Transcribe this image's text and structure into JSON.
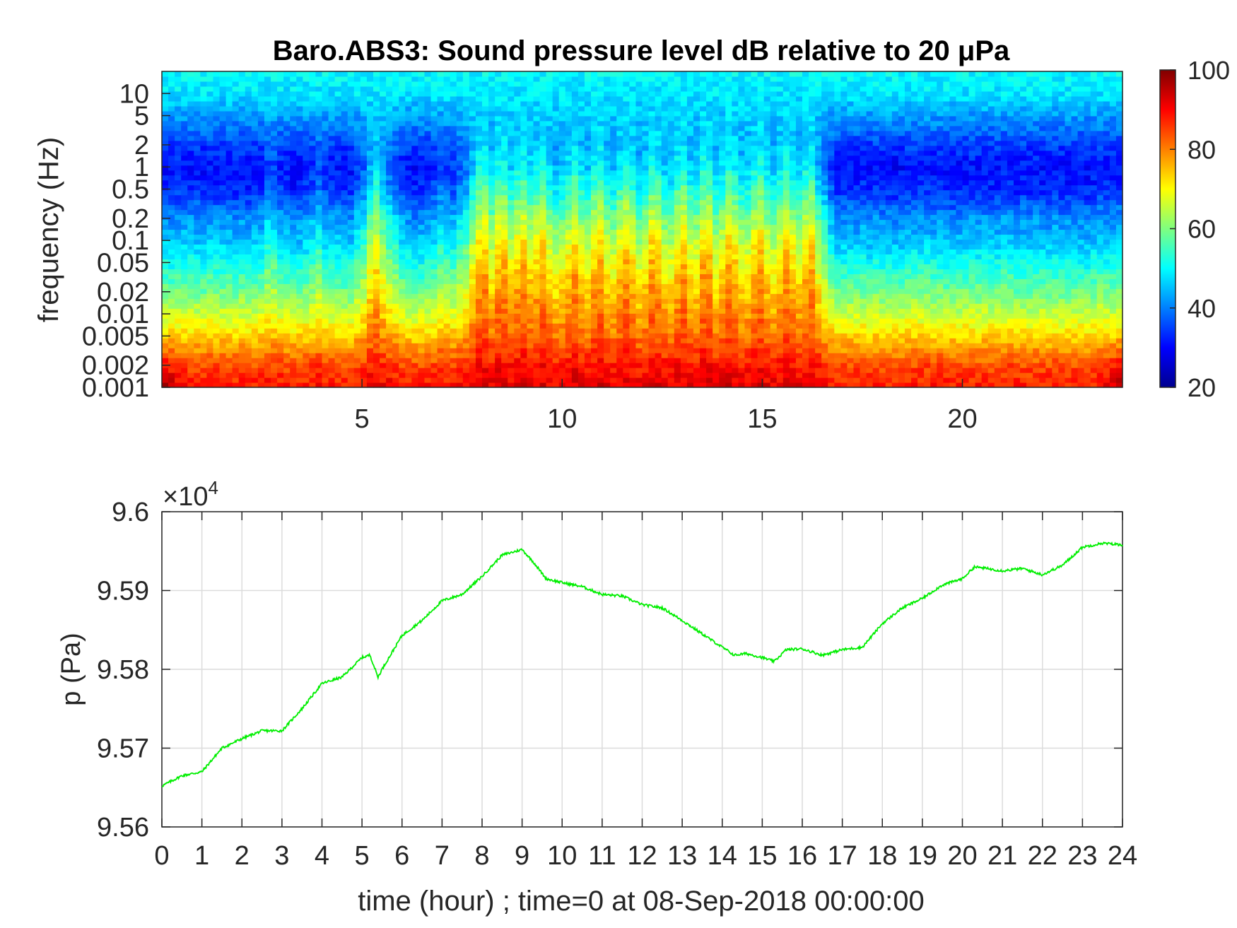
{
  "colors": {
    "trace": "#00ee00",
    "axis": "#262626",
    "grid": "#dcdcdc",
    "colormap": "jet"
  },
  "chart_data": [
    {
      "type": "heatmap",
      "title": "Baro.ABS3: Sound pressure level dB relative to 20 μPa",
      "xlabel": "",
      "ylabel": "frequency (Hz)",
      "x_range": [
        0,
        24
      ],
      "x_ticks": [
        "5",
        "10",
        "15",
        "20"
      ],
      "x_tick_values": [
        5,
        10,
        15,
        20
      ],
      "y_scale": "log",
      "y_range": [
        0.001,
        20
      ],
      "y_ticks": [
        "0.001",
        "0.002",
        "0.005",
        "0.01",
        "0.02",
        "0.05",
        "0.1",
        "0.2",
        "0.5",
        "1",
        "2",
        "5",
        "10"
      ],
      "y_tick_values": [
        0.001,
        0.002,
        0.005,
        0.01,
        0.02,
        0.05,
        0.1,
        0.2,
        0.5,
        1,
        2,
        5,
        10
      ],
      "colorbar": {
        "range": [
          20,
          100
        ],
        "ticks": [
          "20",
          "40",
          "60",
          "80",
          "100"
        ],
        "tick_values": [
          20,
          40,
          60,
          80,
          100
        ]
      },
      "activity_windows_hours": [
        [
          5.0,
          5.8
        ],
        [
          7.5,
          16.6
        ]
      ],
      "spike_hours": [
        2.7,
        3.9,
        5.3,
        7.0,
        8.0,
        8.5,
        9.0,
        9.5,
        10.3,
        10.9,
        11.6,
        12.3,
        13.0,
        13.6,
        14.2,
        14.9,
        15.6,
        16.2
      ],
      "level_profile_db": {
        "frequency_hz": [
          0.001,
          0.002,
          0.005,
          0.01,
          0.02,
          0.05,
          0.1,
          0.2,
          0.5,
          1,
          2,
          5,
          10,
          20
        ],
        "quiet": [
          88,
          84,
          73,
          65,
          58,
          50,
          44,
          40,
          32,
          30,
          34,
          42,
          48,
          50
        ],
        "active": [
          93,
          90,
          84,
          82,
          80,
          76,
          72,
          66,
          58,
          52,
          48,
          47,
          48,
          50
        ]
      }
    },
    {
      "type": "line",
      "title": "",
      "xlabel": "time (hour) ; time=0 at 08-Sep-2018 00:00:00",
      "ylabel": "p (Pa)",
      "y_multiplier": "×10",
      "y_multiplier_exp": "4",
      "x_range": [
        0,
        24
      ],
      "y_range": [
        95600,
        96000
      ],
      "x_ticks": [
        "0",
        "1",
        "2",
        "3",
        "4",
        "5",
        "6",
        "7",
        "8",
        "9",
        "10",
        "11",
        "12",
        "13",
        "14",
        "15",
        "16",
        "17",
        "18",
        "19",
        "20",
        "21",
        "22",
        "23",
        "24"
      ],
      "y_ticks": [
        "9.56",
        "9.57",
        "9.58",
        "9.59",
        "9.6"
      ],
      "y_tick_values": [
        95600,
        95700,
        95800,
        95900,
        96000
      ],
      "grid": true,
      "series": [
        {
          "x": [
            0,
            0.5,
            1.0,
            1.5,
            2.0,
            2.5,
            3.0,
            3.5,
            4.0,
            4.5,
            5.0,
            5.2,
            5.4,
            5.5,
            6.0,
            6.5,
            7.0,
            7.5,
            8.0,
            8.5,
            9.0,
            9.3,
            9.6,
            10.0,
            10.5,
            11.0,
            11.5,
            12.0,
            12.5,
            13.0,
            13.5,
            14.0,
            14.3,
            14.6,
            15.0,
            15.3,
            15.6,
            16.0,
            16.5,
            17.0,
            17.5,
            18.0,
            18.5,
            19.0,
            19.5,
            20.0,
            20.3,
            20.6,
            21.0,
            21.5,
            22.0,
            22.5,
            23.0,
            23.5,
            24.0
          ],
          "y": [
            95652,
            95665,
            95670,
            95700,
            95712,
            95722,
            95722,
            95750,
            95782,
            95790,
            95815,
            95818,
            95790,
            95800,
            95843,
            95862,
            95887,
            95895,
            95918,
            95945,
            95952,
            95935,
            95915,
            95910,
            95905,
            95895,
            95893,
            95882,
            95878,
            95862,
            95845,
            95828,
            95818,
            95820,
            95815,
            95810,
            95825,
            95826,
            95818,
            95825,
            95828,
            95858,
            95878,
            95890,
            95907,
            95915,
            95930,
            95928,
            95925,
            95928,
            95920,
            95932,
            95955,
            95960,
            95958
          ]
        }
      ]
    }
  ]
}
